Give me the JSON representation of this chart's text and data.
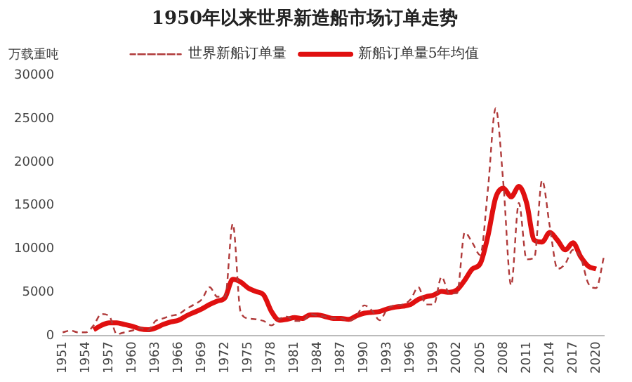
{
  "chart_data": {
    "type": "line",
    "title": "1950年以来世界新造船市场订单走势",
    "ylabel": "万载重吨",
    "categories": [
      "1951",
      null,
      null,
      "1954",
      null,
      null,
      "1957",
      null,
      null,
      "1960",
      null,
      null,
      "1963",
      null,
      null,
      "1966",
      null,
      null,
      "1969",
      null,
      null,
      "1972",
      null,
      null,
      "1975",
      null,
      null,
      "1978",
      null,
      null,
      "1981",
      null,
      null,
      "1984",
      null,
      null,
      "1987",
      null,
      null,
      "1990",
      null,
      null,
      "1993",
      null,
      null,
      "1996",
      null,
      null,
      "1999",
      null,
      null,
      "2002",
      null,
      null,
      "2005",
      null,
      null,
      "2008",
      null,
      null,
      "2011",
      null,
      null,
      "2014",
      null,
      null,
      "2017",
      null,
      null,
      "2020",
      null
    ],
    "series": [
      {
        "name": "世界新船订单量",
        "color": "#b03a3a",
        "line_style": "dashed",
        "values": [
          400,
          600,
          400,
          400,
          1200,
          2500,
          2300,
          200,
          400,
          600,
          900,
          600,
          1700,
          2000,
          2300,
          2500,
          3100,
          3600,
          4200,
          5600,
          4500,
          4500,
          12900,
          2800,
          2000,
          1900,
          1700,
          1200,
          1900,
          2200,
          1700,
          1700,
          2500,
          2300,
          2200,
          2000,
          2000,
          1700,
          2300,
          3500,
          2900,
          1800,
          3100,
          3500,
          3600,
          4200,
          5600,
          3600,
          3600,
          6800,
          4900,
          4900,
          11900,
          10700,
          9300,
          16900,
          26200,
          17500,
          5800,
          15300,
          8800,
          9000,
          17900,
          12600,
          7700,
          8300,
          9900,
          9000,
          6000,
          5500,
          9100
        ]
      },
      {
        "name": "新船订单量5年均值",
        "color": "#e01010",
        "line_style": "solid",
        "values": [
          null,
          null,
          null,
          null,
          700,
          1200,
          1500,
          1500,
          1300,
          1100,
          800,
          700,
          900,
          1300,
          1600,
          1800,
          2300,
          2700,
          3100,
          3600,
          4000,
          4400,
          6500,
          6200,
          5500,
          5100,
          4700,
          2800,
          1800,
          1900,
          2100,
          2000,
          2400,
          2400,
          2200,
          2000,
          2000,
          1900,
          2300,
          2600,
          2700,
          2800,
          3100,
          3300,
          3400,
          3600,
          4200,
          4500,
          4700,
          5100,
          5000,
          5300,
          6400,
          7700,
          8300,
          11500,
          15900,
          17000,
          16000,
          17200,
          15300,
          11000,
          10800,
          11900,
          11000,
          9900,
          10700,
          9100,
          8000,
          7700,
          null
        ]
      }
    ],
    "ylim": [
      0,
      30000
    ],
    "yticks": [
      0,
      5000,
      10000,
      15000,
      20000,
      25000,
      30000
    ],
    "grid": false,
    "legend": "top",
    "marker": "none"
  }
}
